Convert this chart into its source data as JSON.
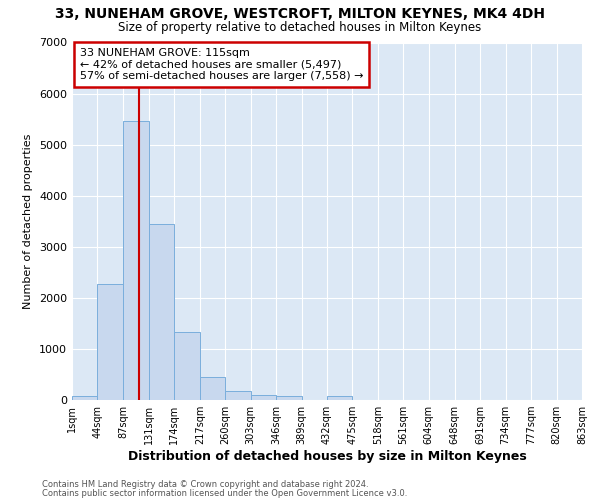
{
  "title": "33, NUNEHAM GROVE, WESTCROFT, MILTON KEYNES, MK4 4DH",
  "subtitle": "Size of property relative to detached houses in Milton Keynes",
  "xlabel": "Distribution of detached houses by size in Milton Keynes",
  "ylabel": "Number of detached properties",
  "bar_color": "#c8d8ee",
  "bar_edge_color": "#7aaedc",
  "background_color": "#dce8f5",
  "grid_color": "#ffffff",
  "annotation_box_edge": "#cc0000",
  "red_line_color": "#cc0000",
  "annotation_line1": "33 NUNEHAM GROVE: 115sqm",
  "annotation_line2": "← 42% of detached houses are smaller (5,497)",
  "annotation_line3": "57% of semi-detached houses are larger (7,558) →",
  "footer1": "Contains HM Land Registry data © Crown copyright and database right 2024.",
  "footer2": "Contains public sector information licensed under the Open Government Licence v3.0.",
  "bin_edges": [
    1,
    44,
    87,
    131,
    174,
    217,
    260,
    303,
    346,
    389,
    432,
    475,
    518,
    561,
    604,
    648,
    691,
    734,
    777,
    820,
    863
  ],
  "bar_heights": [
    75,
    2270,
    5470,
    3440,
    1330,
    450,
    170,
    100,
    80,
    0,
    80,
    0,
    0,
    0,
    0,
    0,
    0,
    0,
    0,
    0
  ],
  "red_line_x": 115,
  "ylim": [
    0,
    7000
  ],
  "yticks": [
    0,
    1000,
    2000,
    3000,
    4000,
    5000,
    6000,
    7000
  ],
  "xtick_labels": [
    "1sqm",
    "44sqm",
    "87sqm",
    "131sqm",
    "174sqm",
    "217sqm",
    "260sqm",
    "303sqm",
    "346sqm",
    "389sqm",
    "432sqm",
    "475sqm",
    "518sqm",
    "561sqm",
    "604sqm",
    "648sqm",
    "691sqm",
    "734sqm",
    "777sqm",
    "820sqm",
    "863sqm"
  ]
}
